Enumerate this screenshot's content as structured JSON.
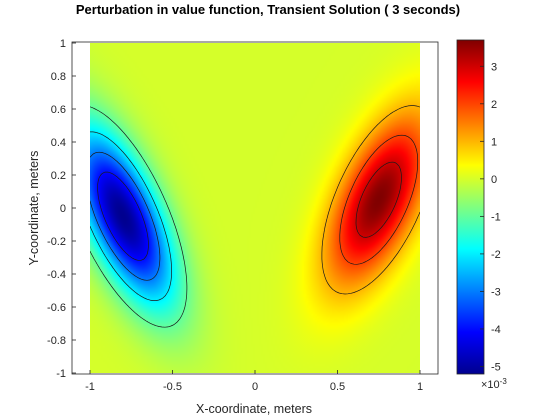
{
  "chart_data": {
    "type": "heatmap",
    "title": "Perturbation in value function, Transient Solution ( 3 seconds)",
    "xlabel": "X-coordinate, meters",
    "ylabel": "Y-coordinate, meters",
    "xlim": [
      -1,
      1
    ],
    "ylim": [
      -1,
      1
    ],
    "xticks": [
      -1,
      -0.5,
      0,
      0.5,
      1
    ],
    "xtick_labels": [
      "-1",
      "-0.5",
      "0",
      "0.5",
      "1"
    ],
    "yticks": [
      -1,
      -0.8,
      -0.6,
      -0.4,
      -0.2,
      0,
      0.2,
      0.4,
      0.6,
      0.8,
      1
    ],
    "ytick_labels": [
      "-1",
      "-0.8",
      "-0.6",
      "-0.4",
      "-0.2",
      "0",
      "0.2",
      "0.4",
      "0.6",
      "0.8",
      "1"
    ],
    "colorbar": {
      "colormap": "jet",
      "clim": [
        -5.2,
        3.7
      ],
      "ticks": [
        -5,
        -4,
        -3,
        -2,
        -1,
        0,
        1,
        2,
        3
      ],
      "tick_labels": [
        "-5",
        "-4",
        "-3",
        "-2",
        "-1",
        "0",
        "1",
        "2",
        "3"
      ],
      "exponent_label": "×10",
      "exponent_value": "-3"
    },
    "contour_levels": [
      -4,
      -3,
      -2,
      -1,
      1,
      2,
      3
    ],
    "features": [
      {
        "name": "negative lobe",
        "center": [
          -0.8,
          -0.05
        ],
        "peak": -5.2
      },
      {
        "name": "positive lobe",
        "center": [
          0.75,
          0.05
        ],
        "peak": 3.7
      }
    ]
  }
}
